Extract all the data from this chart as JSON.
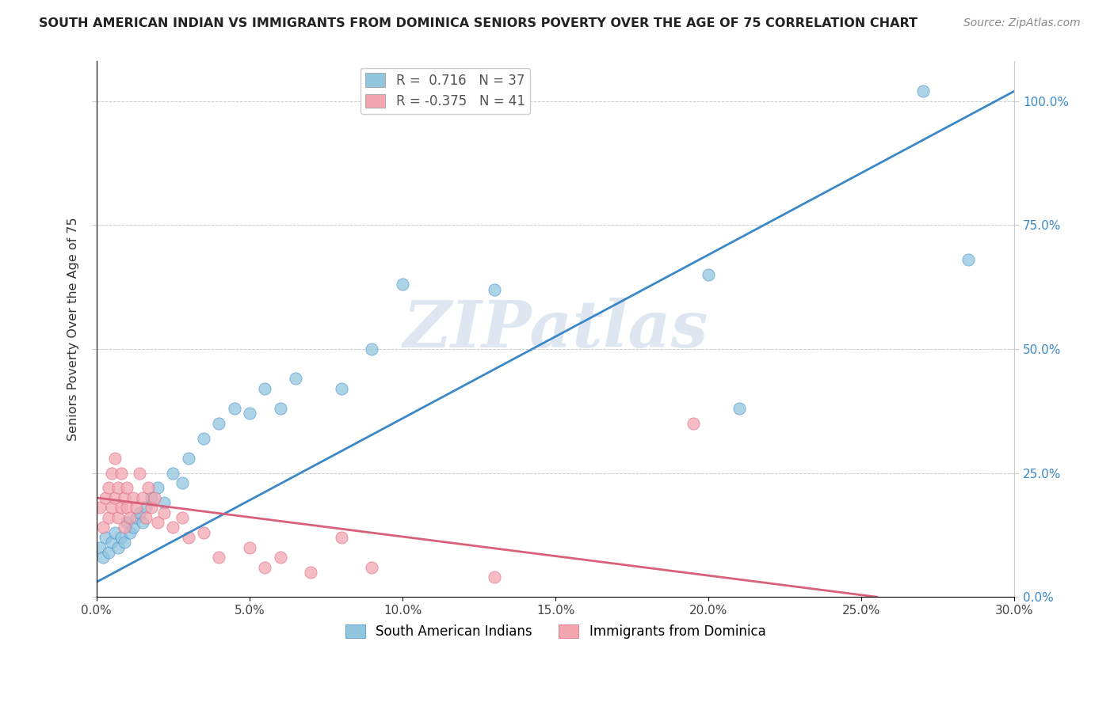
{
  "title": "SOUTH AMERICAN INDIAN VS IMMIGRANTS FROM DOMINICA SENIORS POVERTY OVER THE AGE OF 75 CORRELATION CHART",
  "source": "Source: ZipAtlas.com",
  "ylabel": "Seniors Poverty Over the Age of 75",
  "xmin": 0.0,
  "xmax": 0.3,
  "ymin": 0.0,
  "ymax": 1.08,
  "xtick_labels": [
    "0.0%",
    "5.0%",
    "10.0%",
    "15.0%",
    "20.0%",
    "25.0%",
    "30.0%"
  ],
  "xtick_values": [
    0.0,
    0.05,
    0.1,
    0.15,
    0.2,
    0.25,
    0.3
  ],
  "ytick_labels": [
    "0.0%",
    "25.0%",
    "50.0%",
    "75.0%",
    "100.0%"
  ],
  "ytick_values": [
    0.0,
    0.25,
    0.5,
    0.75,
    1.0
  ],
  "blue_R": 0.716,
  "blue_N": 37,
  "pink_R": -0.375,
  "pink_N": 41,
  "blue_color": "#92c5de",
  "pink_color": "#f4a6b0",
  "blue_line_color": "#3a88c8",
  "pink_line_color": "#d9607a",
  "watermark": "ZIPatlas",
  "legend_label_blue": "South American Indians",
  "legend_label_pink": "Immigrants from Dominica",
  "blue_line_x0": 0.0,
  "blue_line_y0": 0.03,
  "blue_line_x1": 0.3,
  "blue_line_y1": 1.02,
  "pink_line_x0": 0.0,
  "pink_line_y0": 0.2,
  "pink_line_x1": 0.255,
  "pink_line_y1": 0.0,
  "blue_scatter_x": [
    0.001,
    0.002,
    0.003,
    0.004,
    0.005,
    0.006,
    0.007,
    0.008,
    0.009,
    0.01,
    0.011,
    0.012,
    0.013,
    0.014,
    0.015,
    0.016,
    0.018,
    0.02,
    0.022,
    0.025,
    0.028,
    0.03,
    0.035,
    0.04,
    0.045,
    0.05,
    0.055,
    0.06,
    0.065,
    0.08,
    0.09,
    0.1,
    0.13,
    0.2,
    0.21,
    0.27,
    0.285
  ],
  "blue_scatter_y": [
    0.1,
    0.08,
    0.12,
    0.09,
    0.11,
    0.13,
    0.1,
    0.12,
    0.11,
    0.15,
    0.13,
    0.14,
    0.16,
    0.17,
    0.15,
    0.18,
    0.2,
    0.22,
    0.19,
    0.25,
    0.23,
    0.28,
    0.32,
    0.35,
    0.38,
    0.37,
    0.42,
    0.38,
    0.44,
    0.42,
    0.5,
    0.63,
    0.62,
    0.65,
    0.38,
    1.02,
    0.68
  ],
  "pink_scatter_x": [
    0.001,
    0.002,
    0.003,
    0.004,
    0.004,
    0.005,
    0.005,
    0.006,
    0.006,
    0.007,
    0.007,
    0.008,
    0.008,
    0.009,
    0.009,
    0.01,
    0.01,
    0.011,
    0.012,
    0.013,
    0.014,
    0.015,
    0.016,
    0.017,
    0.018,
    0.019,
    0.02,
    0.022,
    0.025,
    0.028,
    0.03,
    0.035,
    0.04,
    0.05,
    0.055,
    0.06,
    0.07,
    0.08,
    0.09,
    0.13,
    0.195
  ],
  "pink_scatter_y": [
    0.18,
    0.14,
    0.2,
    0.16,
    0.22,
    0.18,
    0.25,
    0.2,
    0.28,
    0.16,
    0.22,
    0.18,
    0.25,
    0.14,
    0.2,
    0.18,
    0.22,
    0.16,
    0.2,
    0.18,
    0.25,
    0.2,
    0.16,
    0.22,
    0.18,
    0.2,
    0.15,
    0.17,
    0.14,
    0.16,
    0.12,
    0.13,
    0.08,
    0.1,
    0.06,
    0.08,
    0.05,
    0.12,
    0.06,
    0.04,
    0.35
  ]
}
